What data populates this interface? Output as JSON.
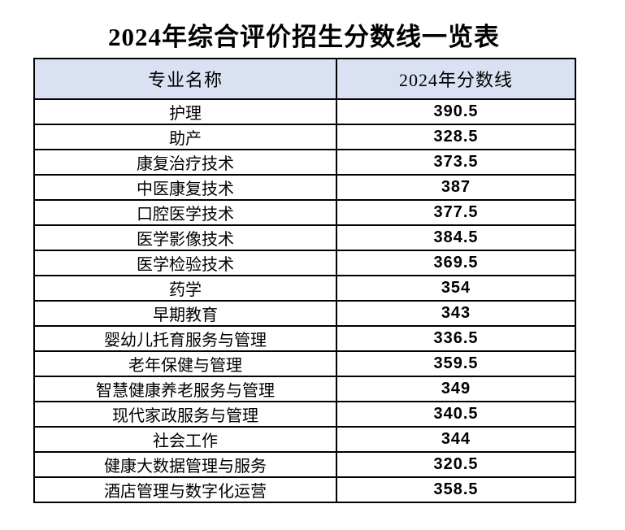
{
  "title": "2024年综合评价招生分数线一览表",
  "table": {
    "headers": [
      "专业名称",
      "2024年分数线"
    ],
    "header_bg": "#d9e1f2",
    "border_color": "#000000",
    "rows": [
      {
        "major": "护理",
        "score": "390.5"
      },
      {
        "major": "助产",
        "score": "328.5"
      },
      {
        "major": "康复治疗技术",
        "score": "373.5"
      },
      {
        "major": "中医康复技术",
        "score": "387"
      },
      {
        "major": "口腔医学技术",
        "score": "377.5"
      },
      {
        "major": "医学影像技术",
        "score": "384.5"
      },
      {
        "major": "医学检验技术",
        "score": "369.5"
      },
      {
        "major": "药学",
        "score": "354"
      },
      {
        "major": "早期教育",
        "score": "343"
      },
      {
        "major": "婴幼儿托育服务与管理",
        "score": "336.5"
      },
      {
        "major": "老年保健与管理",
        "score": "359.5"
      },
      {
        "major": "智慧健康养老服务与管理",
        "score": "349"
      },
      {
        "major": "现代家政服务与管理",
        "score": "340.5"
      },
      {
        "major": "社会工作",
        "score": "344"
      },
      {
        "major": "健康大数据管理与服务",
        "score": "320.5"
      },
      {
        "major": "酒店管理与数字化运营",
        "score": "358.5"
      }
    ]
  }
}
